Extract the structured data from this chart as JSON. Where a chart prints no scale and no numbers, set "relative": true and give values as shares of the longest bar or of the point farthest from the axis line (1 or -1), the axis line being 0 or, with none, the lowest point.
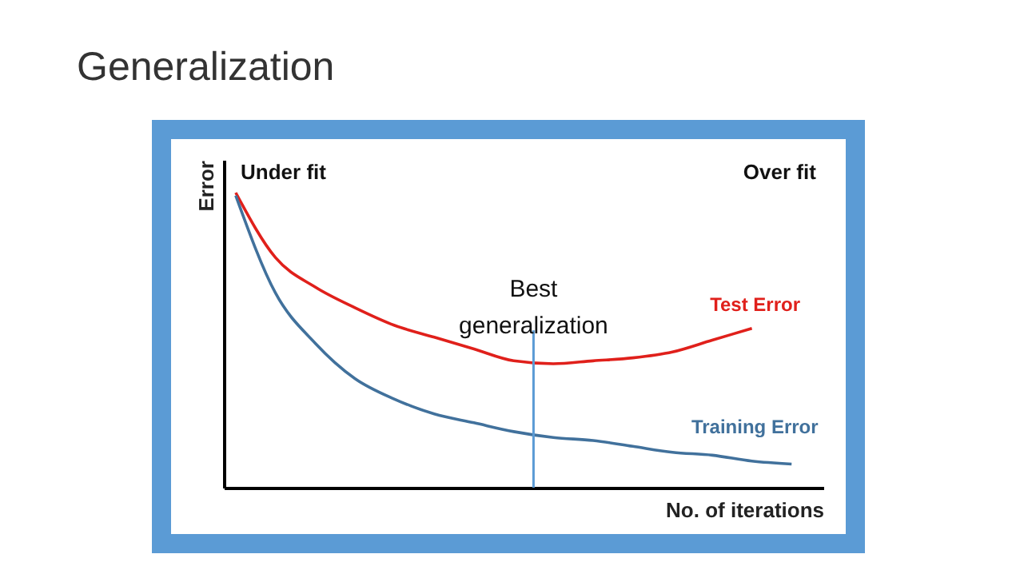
{
  "chart_data": {
    "type": "line",
    "title": "Generalization",
    "xlabel": "No. of iterations",
    "ylabel": "Error",
    "relative": true,
    "categories": [
      null,
      null,
      null,
      null,
      null,
      null,
      null,
      null,
      null,
      null,
      null,
      null,
      null,
      null,
      null
    ],
    "series": [
      {
        "name": "Test Error",
        "color": "#e0201b",
        "values": [
          1.0,
          0.78,
          0.68,
          0.61,
          0.55,
          0.51,
          0.47,
          0.43,
          0.42,
          0.43,
          0.44,
          0.46,
          0.5,
          0.54,
          null
        ]
      },
      {
        "name": "Training Error",
        "color": "#41719c",
        "values": [
          0.99,
          0.66,
          0.49,
          0.37,
          0.3,
          0.25,
          0.22,
          0.19,
          0.17,
          0.16,
          0.14,
          0.12,
          0.11,
          0.09,
          0.08
        ]
      }
    ],
    "annotations": [
      "Under fit",
      "Over fit",
      "Best\ngeneralization"
    ],
    "marker": "none",
    "line_style": "solid"
  }
}
